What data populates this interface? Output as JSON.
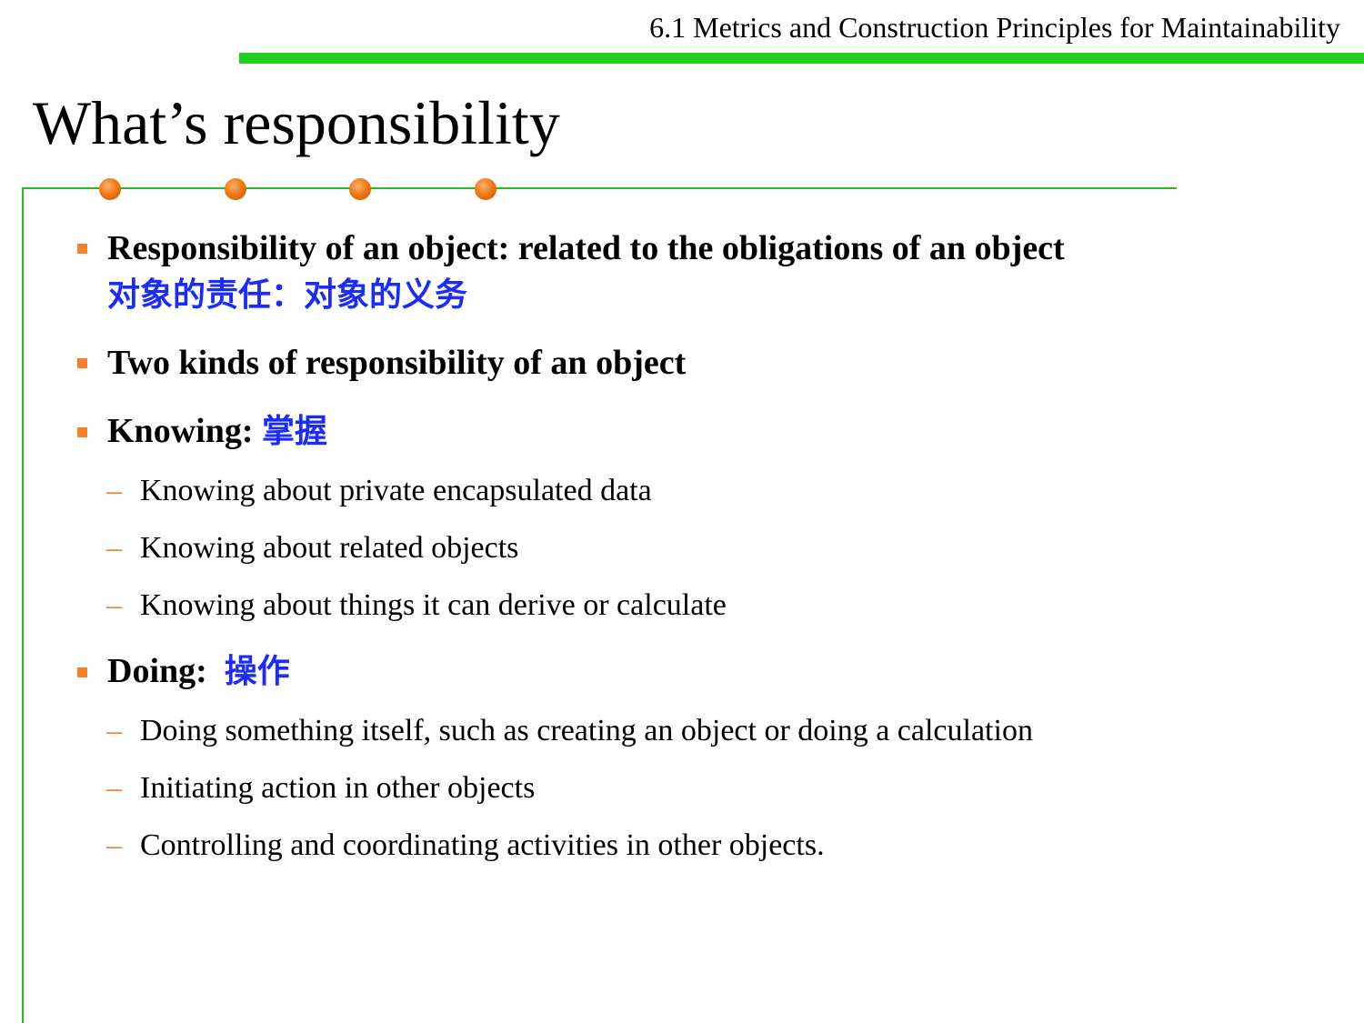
{
  "header": {
    "section_title": "6.1 Metrics and Construction Principles for Maintainability"
  },
  "slide": {
    "title": "What’s responsibility"
  },
  "bullets": [
    {
      "text": "Responsibility of an object: related to the obligations of an object",
      "cn": "对象的责任：对象的义务"
    },
    {
      "text": "Two kinds of responsibility of an object"
    },
    {
      "text": "Knowing:",
      "cn": "掌握",
      "subs": [
        "Knowing about private encapsulated data",
        "Knowing about related objects",
        "Knowing about things it can derive or calculate"
      ]
    },
    {
      "text": "Doing:",
      "cn": "操作",
      "subs": [
        "Doing something itself, such as creating an object or doing a calculation",
        "Initiating action in other objects",
        "Controlling and coordinating activities in other objects."
      ]
    }
  ],
  "colors": {
    "header_bar": "#1fd01f",
    "rule": "#2ab82a",
    "bullet": "#f58025",
    "chinese_text": "#1a2bff"
  }
}
